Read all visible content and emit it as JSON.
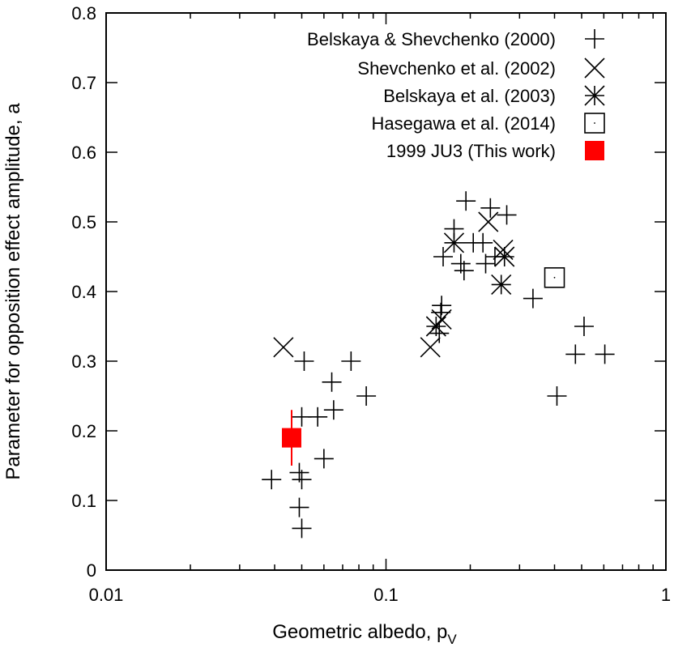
{
  "chart_data": {
    "type": "scatter",
    "xscale": "log",
    "xlabel": "Geometric albedo, p",
    "xlabel_sub": "V",
    "ylabel": "Parameter for opposition effect amplitude, a",
    "xlim": [
      0.01,
      1
    ],
    "ylim": [
      0,
      0.8
    ],
    "xticks": [
      0.01,
      0.1,
      1
    ],
    "xtick_labels": [
      "0.01",
      "0.1",
      "1"
    ],
    "yticks": [
      0,
      0.1,
      0.2,
      0.3,
      0.4,
      0.5,
      0.6,
      0.7,
      0.8
    ],
    "ytick_labels": [
      "0",
      "0.1",
      "0.2",
      "0.3",
      "0.4",
      "0.5",
      "0.6",
      "0.7",
      "0.8"
    ],
    "legend_position": "top-right",
    "colors": {
      "axis": "#000000",
      "highlight": "#ff0000"
    },
    "series": [
      {
        "name": "Belskaya & Shevchenko (2000)",
        "marker": "plus",
        "color": "#000000",
        "points": [
          [
            0.039,
            0.13
          ],
          [
            0.049,
            0.09
          ],
          [
            0.05,
            0.06
          ],
          [
            0.049,
            0.14
          ],
          [
            0.05,
            0.13
          ],
          [
            0.05,
            0.22
          ],
          [
            0.051,
            0.3
          ],
          [
            0.057,
            0.22
          ],
          [
            0.06,
            0.16
          ],
          [
            0.065,
            0.23
          ],
          [
            0.064,
            0.27
          ],
          [
            0.075,
            0.3
          ],
          [
            0.085,
            0.25
          ],
          [
            0.155,
            0.34
          ],
          [
            0.157,
            0.37
          ],
          [
            0.158,
            0.38
          ],
          [
            0.16,
            0.45
          ],
          [
            0.175,
            0.49
          ],
          [
            0.185,
            0.44
          ],
          [
            0.19,
            0.43
          ],
          [
            0.193,
            0.53
          ],
          [
            0.205,
            0.47
          ],
          [
            0.222,
            0.47
          ],
          [
            0.227,
            0.44
          ],
          [
            0.236,
            0.52
          ],
          [
            0.245,
            0.45
          ],
          [
            0.27,
            0.51
          ],
          [
            0.335,
            0.39
          ],
          [
            0.408,
            0.25
          ],
          [
            0.475,
            0.31
          ],
          [
            0.51,
            0.35
          ],
          [
            0.605,
            0.31
          ]
        ]
      },
      {
        "name": "Shevchenko et al. (2002)",
        "marker": "cross",
        "color": "#000000",
        "points": [
          [
            0.043,
            0.32
          ],
          [
            0.144,
            0.32
          ],
          [
            0.158,
            0.36
          ],
          [
            0.232,
            0.5
          ],
          [
            0.262,
            0.46
          ]
        ]
      },
      {
        "name": "Belskaya et al. (2003)",
        "marker": "asterisk",
        "color": "#000000",
        "points": [
          [
            0.151,
            0.35
          ],
          [
            0.175,
            0.47
          ],
          [
            0.258,
            0.41
          ],
          [
            0.265,
            0.45
          ]
        ]
      },
      {
        "name": "Hasegawa et al. (2014)",
        "marker": "square-open",
        "color": "#000000",
        "points": [
          [
            0.4,
            0.42
          ]
        ]
      },
      {
        "name": "1999 JU3 (This work)",
        "marker": "square-filled",
        "color": "#ff0000",
        "points": [
          [
            0.046,
            0.19
          ]
        ],
        "error_y": [
          [
            0.15,
            0.23
          ]
        ]
      }
    ]
  }
}
